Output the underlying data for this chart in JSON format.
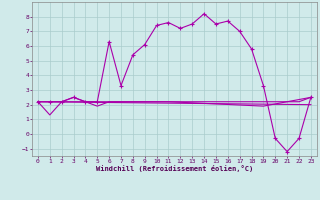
{
  "xlabel": "Windchill (Refroidissement éolien,°C)",
  "background_color": "#d0eaea",
  "grid_color": "#aacccc",
  "line_color": "#aa00aa",
  "xlim": [
    -0.5,
    23.5
  ],
  "ylim": [
    -1.5,
    9.0
  ],
  "yticks": [
    -1,
    0,
    1,
    2,
    3,
    4,
    5,
    6,
    7,
    8
  ],
  "xticks": [
    0,
    1,
    2,
    3,
    4,
    5,
    6,
    7,
    8,
    9,
    10,
    11,
    12,
    13,
    14,
    15,
    16,
    17,
    18,
    19,
    20,
    21,
    22,
    23
  ],
  "curve1_x": [
    0,
    1,
    2,
    3,
    4,
    5,
    6,
    7,
    8,
    9,
    10,
    11,
    12,
    13,
    14,
    15,
    16,
    17,
    18,
    19,
    20,
    21,
    22,
    23
  ],
  "curve1_y": [
    2.2,
    2.2,
    2.2,
    2.5,
    2.2,
    2.2,
    6.3,
    3.3,
    5.4,
    6.1,
    7.4,
    7.6,
    7.2,
    7.5,
    8.2,
    7.5,
    7.7,
    7.0,
    5.8,
    3.3,
    -0.3,
    -1.2,
    -0.3,
    2.5
  ],
  "curve2_x": [
    0,
    1,
    2,
    3,
    4,
    5,
    6,
    7,
    8,
    9,
    10,
    11,
    12,
    13,
    14,
    15,
    16,
    17,
    18,
    19,
    20,
    21,
    22,
    23
  ],
  "curve2_y": [
    2.2,
    1.3,
    2.2,
    2.5,
    2.2,
    1.9,
    2.2,
    2.2,
    2.2,
    2.2,
    2.2,
    2.2,
    2.2,
    2.2,
    2.2,
    2.2,
    2.2,
    2.2,
    2.2,
    2.2,
    2.2,
    2.2,
    2.2,
    2.5
  ],
  "curve3_x": [
    0,
    23
  ],
  "curve3_y": [
    2.2,
    2.0
  ],
  "curve4_x": [
    0,
    11,
    19,
    23
  ],
  "curve4_y": [
    2.2,
    2.2,
    1.9,
    2.5
  ]
}
